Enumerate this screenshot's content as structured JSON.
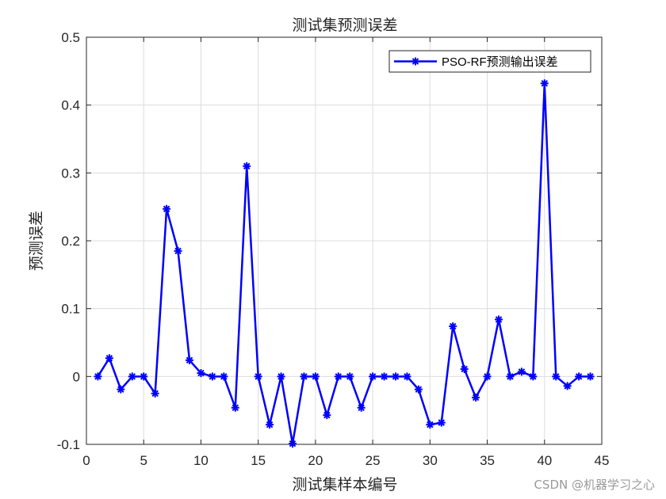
{
  "chart_data": {
    "type": "line",
    "title": "测试集预测误差",
    "xlabel": "测试集样本编号",
    "ylabel": "预测误差",
    "xlim": [
      0,
      45
    ],
    "ylim": [
      -0.1,
      0.5
    ],
    "xticks": [
      0,
      5,
      10,
      15,
      20,
      25,
      30,
      35,
      40,
      45
    ],
    "yticks": [
      -0.1,
      0,
      0.1,
      0.2,
      0.3,
      0.4,
      0.5
    ],
    "grid": true,
    "legend_position": "top-right",
    "series": [
      {
        "name": "PSO-RF预测输出误差",
        "color": "#0000ff",
        "marker": "asterisk",
        "x": [
          1,
          2,
          3,
          4,
          5,
          6,
          7,
          8,
          9,
          10,
          11,
          12,
          13,
          14,
          15,
          16,
          17,
          18,
          19,
          20,
          21,
          22,
          23,
          24,
          25,
          26,
          27,
          28,
          29,
          30,
          31,
          32,
          33,
          34,
          35,
          36,
          37,
          38,
          39,
          40,
          41,
          42,
          43,
          44
        ],
        "values": [
          0,
          0.027,
          -0.019,
          0,
          0,
          -0.025,
          0.247,
          0.185,
          0.024,
          0.005,
          0,
          0,
          -0.046,
          0.31,
          0,
          -0.071,
          0,
          -0.099,
          0,
          0,
          -0.057,
          0,
          0,
          -0.046,
          0,
          0,
          0,
          0,
          -0.019,
          -0.071,
          -0.068,
          0.074,
          0.011,
          -0.031,
          0,
          0.084,
          0,
          0.007,
          0,
          0.432,
          0,
          -0.014,
          0,
          0
        ]
      }
    ]
  },
  "watermark": "CSDN @机器学习之心"
}
